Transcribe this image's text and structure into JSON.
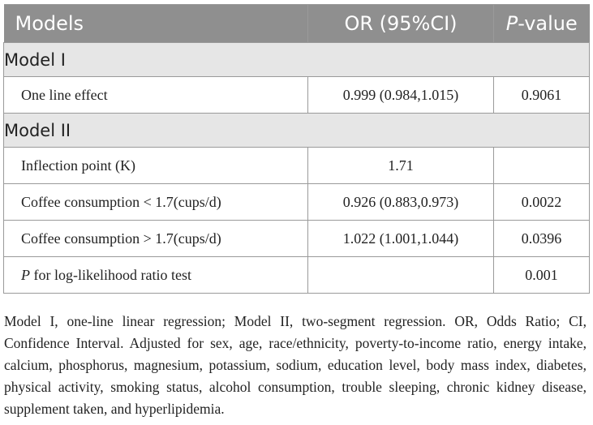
{
  "table": {
    "headers": {
      "models": "Models",
      "or": "OR (95%CI)",
      "p_italic": "P",
      "p_rest": "-value"
    },
    "sections": [
      {
        "title": "Model I",
        "rows": [
          {
            "label": "One line effect",
            "or": "0.999 (0.984,1.015)",
            "p": "0.9061"
          }
        ]
      },
      {
        "title": "Model II",
        "rows": [
          {
            "label": "Inflection point (K)",
            "or": "1.71",
            "p": ""
          },
          {
            "label": "Coffee consumption < 1.7(cups/d)",
            "or": "0.926 (0.883,0.973)",
            "p": "0.0022"
          },
          {
            "label": "Coffee consumption > 1.7(cups/d)",
            "or": "1.022 (1.001,1.044)",
            "p": "0.0396"
          },
          {
            "label_italic": "P",
            "label_rest": " for log-likelihood ratio test",
            "or": "",
            "p": "0.001"
          }
        ]
      }
    ]
  },
  "footnote": "Model I, one-line linear regression; Model II, two-segment regression. OR, Odds Ratio; CI, Confidence Interval. Adjusted for sex, age, race/ethnicity, poverty-to-income ratio, energy intake, calcium, phosphorus, magnesium, potassium, sodium, education level, body mass index, diabetes, physical activity, smoking status, alcohol consumption, trouble sleeping, chronic kidney disease, supplement taken, and hyperlipidemia."
}
